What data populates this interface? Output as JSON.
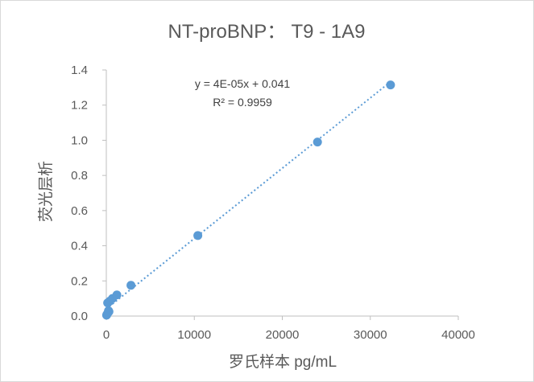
{
  "chart_data": {
    "type": "scatter",
    "title": "NT-proBNP： T9 - 1A9",
    "xlabel": "罗氏样本 pg/mL",
    "ylabel": "荧光层析",
    "xlim": [
      0,
      40000
    ],
    "ylim": [
      0,
      1.4
    ],
    "x_ticks": [
      "0",
      "10000",
      "20000",
      "30000",
      "40000"
    ],
    "y_ticks": [
      "0.0",
      "0.2",
      "0.4",
      "0.6",
      "0.8",
      "1.0",
      "1.2",
      "1.4"
    ],
    "grid": false,
    "legend": "none",
    "series": [
      {
        "x": [
          30,
          80,
          150,
          200,
          250,
          300,
          400,
          700,
          1200,
          2800,
          10400,
          24000,
          32300
        ],
        "y": [
          0.005,
          0.01,
          0.075,
          0.02,
          0.03,
          0.025,
          0.085,
          0.1,
          0.12,
          0.175,
          0.458,
          0.99,
          1.315
        ],
        "color": "#5b9bd5",
        "trendline": {
          "type": "linear",
          "equation": "y = 4E-05x + 0.041",
          "r2": "R² = 0.9959",
          "slope": 4e-05,
          "intercept": 0.041,
          "x_range": [
            0,
            32300
          ],
          "style": "dotted"
        }
      }
    ],
    "colors": {
      "marker": "#5b9bd5",
      "axis": "#bfbfbf",
      "text": "#595959"
    }
  }
}
